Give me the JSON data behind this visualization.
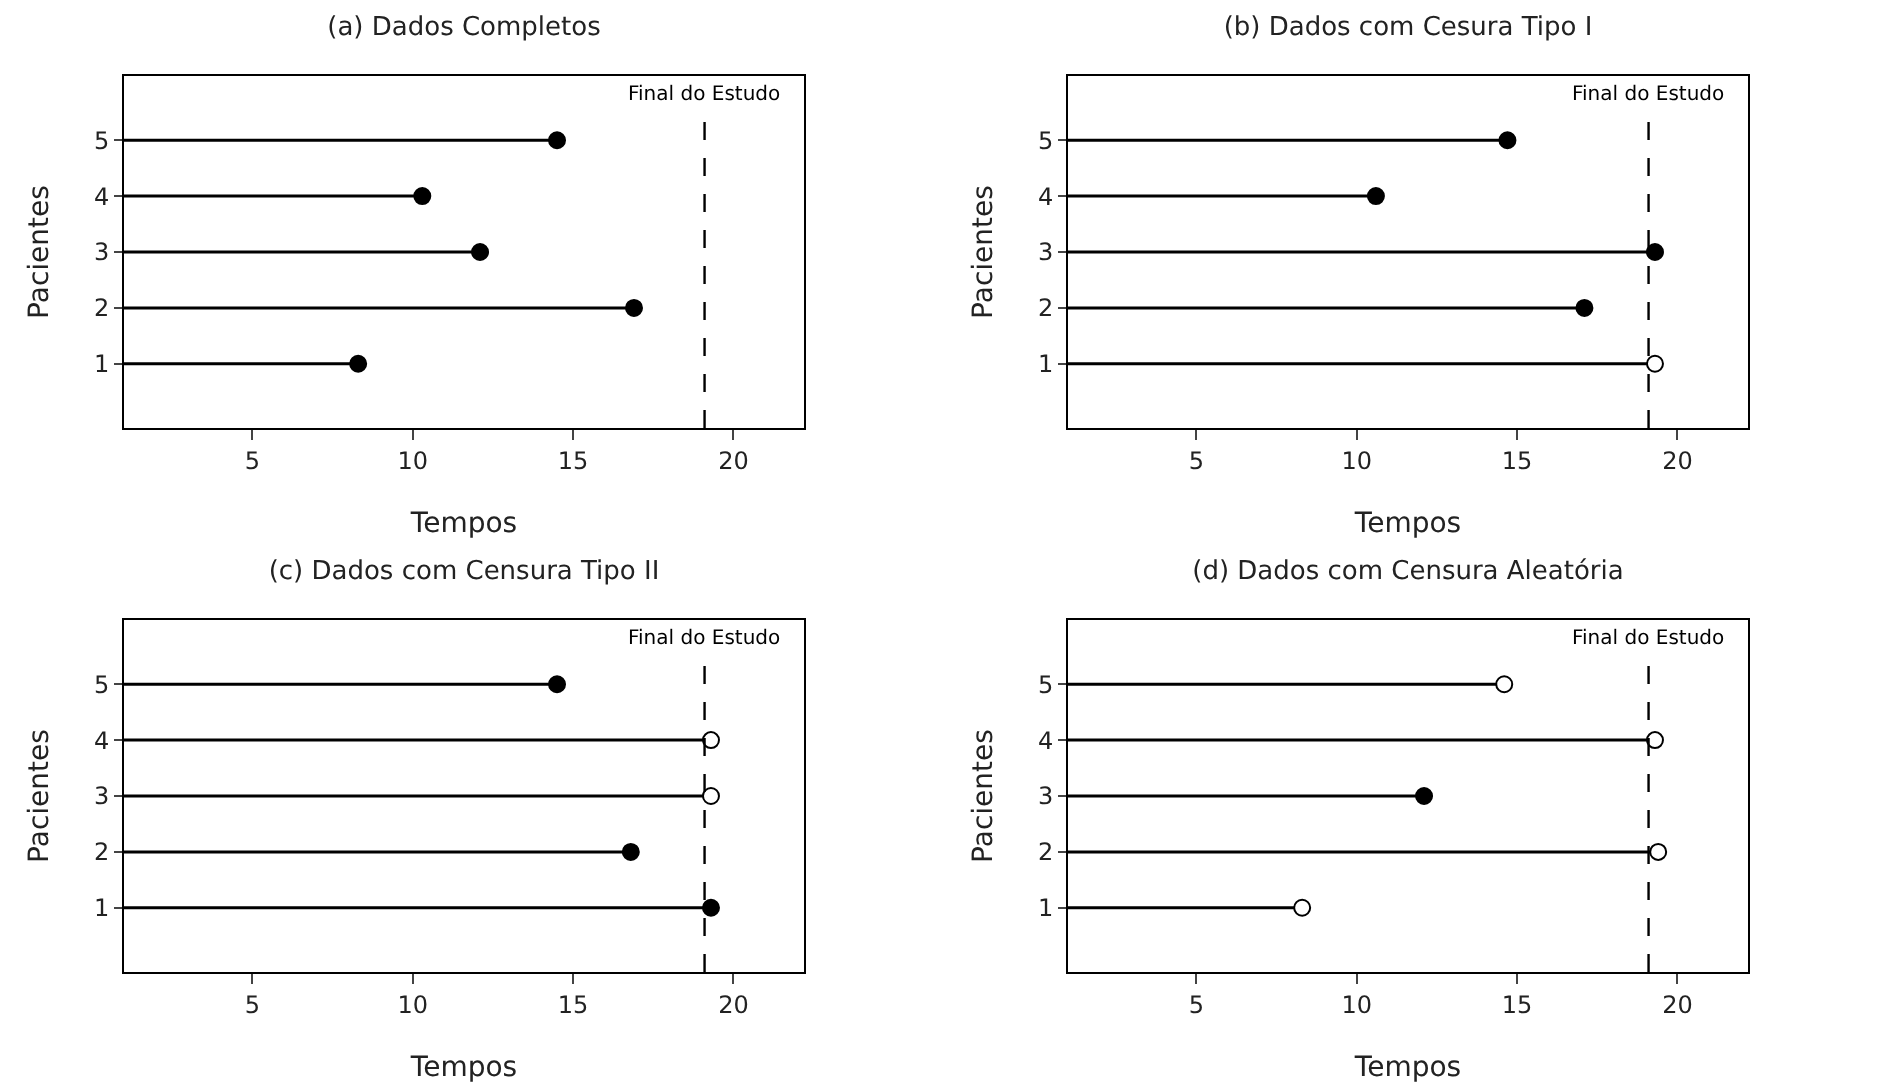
{
  "chart_data": [
    {
      "type": "lollipop",
      "orientation": "horizontal",
      "title": "(a) Dados Completos",
      "xlabel": "Tempos",
      "ylabel": "Pacientes",
      "categories": [
        "5",
        "4",
        "3",
        "2",
        "1"
      ],
      "marker": "circle",
      "xlim": [
        1,
        22.2
      ],
      "xticks": [
        5,
        10,
        15,
        20
      ],
      "grid": false,
      "series": [
        {
          "color": "#000000",
          "values": [
            14.5,
            10.3,
            12.1,
            16.9,
            8.3
          ]
        }
      ],
      "ref_lines": [
        {
          "axis": "x",
          "value": 19.1,
          "label": "Final do Estudo",
          "line_style": "dashed"
        }
      ]
    },
    {
      "type": "lollipop",
      "orientation": "horizontal",
      "title": "(b) Dados com Cesura Tipo I",
      "xlabel": "Tempos",
      "ylabel": "Pacientes",
      "categories": [
        "5",
        "4",
        "3",
        "2",
        "1"
      ],
      "marker": "circle",
      "xlim": [
        1,
        22.2
      ],
      "xticks": [
        5,
        10,
        15,
        20
      ],
      "grid": false,
      "series": [
        {
          "color": "#000000",
          "values": [
            14.7,
            10.6,
            19.3,
            17.1,
            null
          ]
        },
        {
          "color": "#ffffff",
          "values": [
            null,
            null,
            null,
            null,
            19.3
          ]
        }
      ],
      "ref_lines": [
        {
          "axis": "x",
          "value": 19.1,
          "label": "Final do Estudo",
          "line_style": "dashed"
        }
      ]
    },
    {
      "type": "lollipop",
      "orientation": "horizontal",
      "title": "(c) Dados com Censura Tipo II",
      "xlabel": "Tempos",
      "ylabel": "Pacientes",
      "categories": [
        "5",
        "4",
        "3",
        "2",
        "1"
      ],
      "marker": "circle",
      "xlim": [
        1,
        22.2
      ],
      "xticks": [
        5,
        10,
        15,
        20
      ],
      "grid": false,
      "series": [
        {
          "color": "#000000",
          "values": [
            14.5,
            null,
            null,
            16.8,
            19.3
          ]
        },
        {
          "color": "#ffffff",
          "values": [
            null,
            19.3,
            19.3,
            null,
            null
          ]
        }
      ],
      "ref_lines": [
        {
          "axis": "x",
          "value": 19.1,
          "label": "Final do Estudo",
          "line_style": "dashed"
        }
      ]
    },
    {
      "type": "lollipop",
      "orientation": "horizontal",
      "title": "(d) Dados com Censura Aleatória",
      "xlabel": "Tempos",
      "ylabel": "Pacientes",
      "categories": [
        "5",
        "4",
        "3",
        "2",
        "1"
      ],
      "marker": "circle",
      "xlim": [
        1,
        22.2
      ],
      "xticks": [
        5,
        10,
        15,
        20
      ],
      "grid": false,
      "series": [
        {
          "color": "#000000",
          "values": [
            null,
            null,
            12.1,
            null,
            null
          ]
        },
        {
          "color": "#ffffff",
          "values": [
            14.6,
            19.3,
            null,
            19.4,
            8.3
          ]
        }
      ],
      "ref_lines": [
        {
          "axis": "x",
          "value": 19.1,
          "label": "Final do Estudo",
          "line_style": "dashed"
        }
      ]
    }
  ]
}
